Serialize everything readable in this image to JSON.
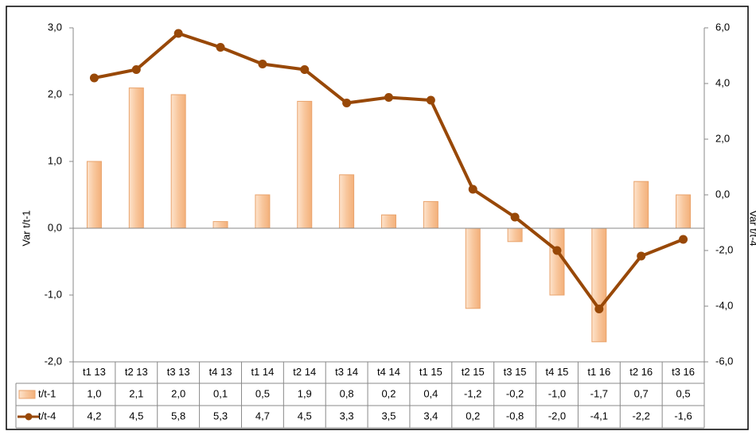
{
  "chart_data": {
    "type": "bar_line",
    "categories": [
      "t1 13",
      "t2 13",
      "t3 13",
      "t4 13",
      "t1 14",
      "t2 14",
      "t3 14",
      "t4 14",
      "t1 15",
      "t2 15",
      "t3 15",
      "t4 15",
      "t1 16",
      "t2 16",
      "t3 16"
    ],
    "series": [
      {
        "name": "t/t-1",
        "type": "bar",
        "color": "#f8c69c",
        "values": [
          1.0,
          2.1,
          2.0,
          0.1,
          0.5,
          1.9,
          0.8,
          0.2,
          0.4,
          -1.2,
          -0.2,
          -1.0,
          -1.7,
          0.7,
          0.5
        ],
        "value_labels": [
          "1,0",
          "2,1",
          "2,0",
          "0,1",
          "0,5",
          "1,9",
          "0,8",
          "0,2",
          "0,4",
          "-1,2",
          "-0,2",
          "-1,0",
          "-1,7",
          "0,7",
          "0,5"
        ]
      },
      {
        "name": "t/t-4",
        "type": "line",
        "axis": "y2",
        "color": "#984807",
        "values": [
          4.2,
          4.5,
          5.8,
          5.3,
          4.7,
          4.5,
          3.3,
          3.5,
          3.4,
          0.2,
          -0.8,
          -2.0,
          -4.1,
          -2.2,
          -1.6
        ],
        "value_labels": [
          "4,2",
          "4,5",
          "5,8",
          "5,3",
          "4,7",
          "4,5",
          "3,3",
          "3,5",
          "3,4",
          "0,2",
          "-0,8",
          "-2,0",
          "-4,1",
          "-2,2",
          "-1,6"
        ]
      }
    ],
    "ylabel": "Var t/t-1",
    "y2label": "Var t/t-4",
    "ylim": [
      -2,
      3
    ],
    "yticks": [
      {
        "value": -2,
        "label": "-2,0"
      },
      {
        "value": -1,
        "label": "-1,0"
      },
      {
        "value": 0,
        "label": "0,0"
      },
      {
        "value": 1,
        "label": "1,0"
      },
      {
        "value": 2,
        "label": "2,0"
      },
      {
        "value": 3,
        "label": "3,0"
      }
    ],
    "y2lim": [
      -6,
      6
    ],
    "y2ticks": [
      {
        "value": -6,
        "label": "-6,0"
      },
      {
        "value": -4,
        "label": "-4,0"
      },
      {
        "value": -2,
        "label": "-2,0"
      },
      {
        "value": 0,
        "label": "0,0"
      },
      {
        "value": 2,
        "label": "2,0"
      },
      {
        "value": 4,
        "label": "4,0"
      },
      {
        "value": 6,
        "label": "6,0"
      }
    ],
    "grid": false
  }
}
